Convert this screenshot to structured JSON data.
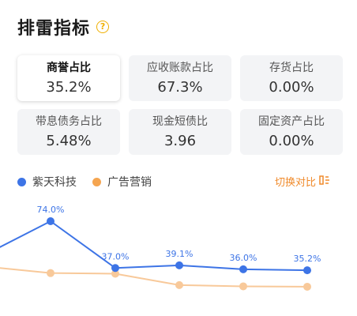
{
  "header": {
    "title": "排雷指标",
    "help_glyph": "?"
  },
  "metrics": [
    {
      "label": "商誉占比",
      "value": "35.2%",
      "active": true
    },
    {
      "label": "应收账款占比",
      "value": "67.3%"
    },
    {
      "label": "存货占比",
      "value": "0.00%"
    },
    {
      "label": "带息债务占比",
      "value": "5.48%"
    },
    {
      "label": "现金短债比",
      "value": "3.96"
    },
    {
      "label": "固定资产占比",
      "value": "0.00%"
    }
  ],
  "legend": {
    "items": [
      {
        "label": "紫天科技",
        "color": "#3d74e6"
      },
      {
        "label": "广告营销",
        "color": "#f5a550"
      }
    ],
    "switch_label": "切换对比",
    "switch_icon": "swap-icon"
  },
  "chart_data": {
    "type": "line",
    "ylim": [
      0,
      80
    ],
    "series": [
      {
        "name": "紫天科技",
        "color": "#3d74e6",
        "values": [
          51.0,
          74.0,
          37.0,
          39.1,
          36.0,
          35.2
        ],
        "labels": [
          "",
          "74.0%",
          "37.0%",
          "39.1%",
          "36.0%",
          "35.2%"
        ]
      },
      {
        "name": "广告营销",
        "color": "#f8c99a",
        "values": [
          37.5,
          33.0,
          32.5,
          23.5,
          22.5,
          22.2
        ],
        "labels": [
          "",
          "",
          "",
          "",
          "",
          ""
        ]
      }
    ]
  }
}
